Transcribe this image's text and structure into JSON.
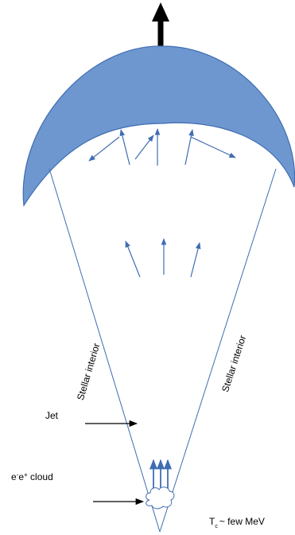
{
  "labels": {
    "jet": "Jet",
    "stellar_interior_left": "Stellar interior",
    "stellar_interior_right": "Stellar interior",
    "pair_cloud": {
      "e_minus_base": "e",
      "e_minus_sup": "-",
      "e_plus_base": "e",
      "e_plus_sup": "+",
      "suffix": " cloud"
    },
    "temperature": {
      "base": "T",
      "sub": "c",
      "suffix": "~ few MeV"
    }
  },
  "colors": {
    "shell_fill": "#6e97cf",
    "shell_stroke": "#3f6db2",
    "cone_line": "#3f6db2",
    "flow_arrow": "#3f6db2",
    "black_arrow": "#000000"
  }
}
